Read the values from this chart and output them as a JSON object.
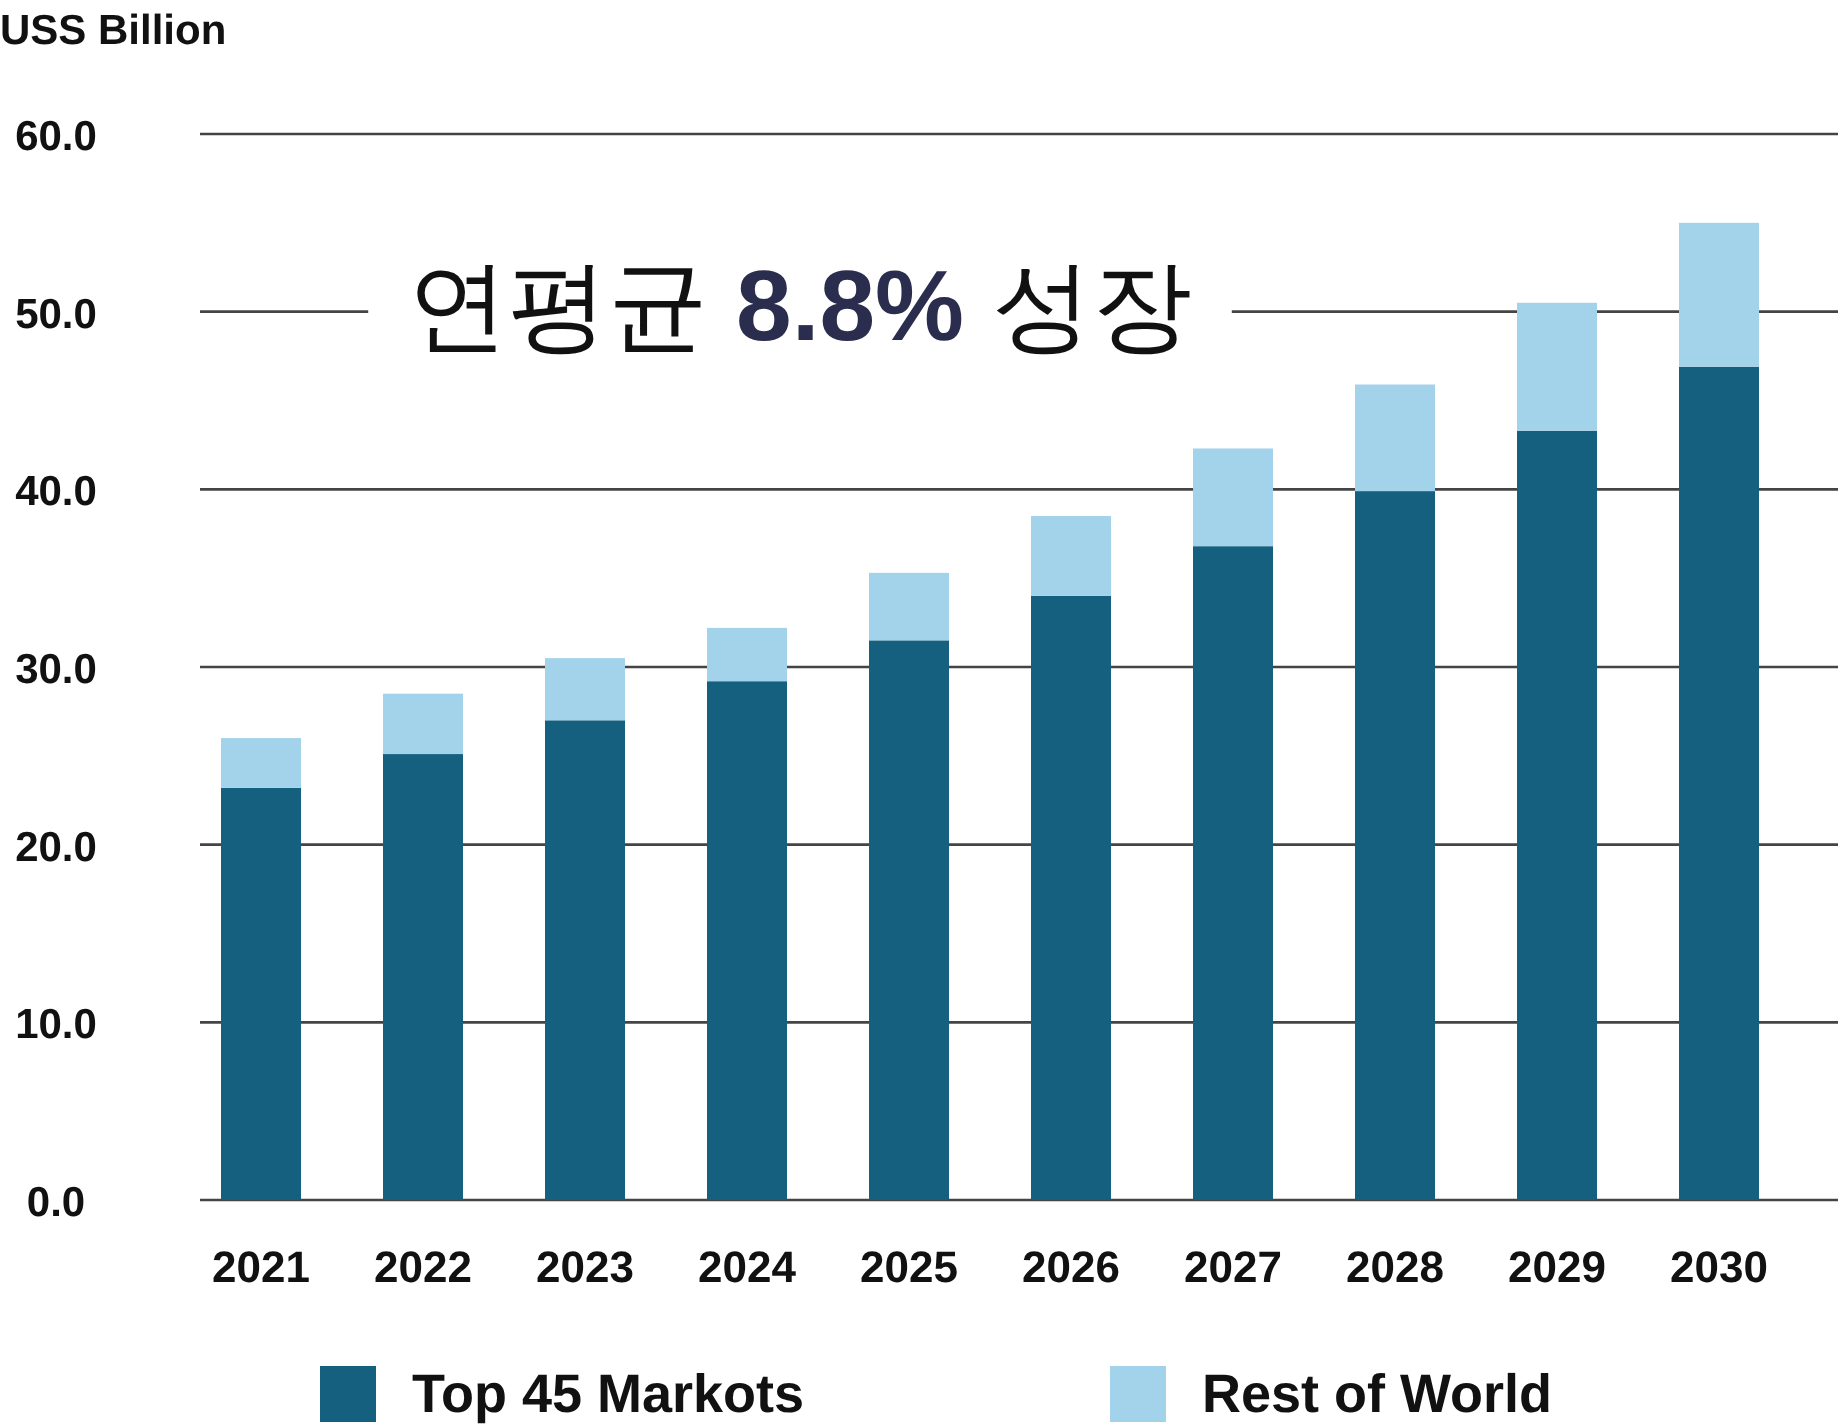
{
  "chart_data": {
    "type": "bar",
    "stacked": true,
    "ylabel": "USS Billion",
    "categories": [
      "2021",
      "2022",
      "2023",
      "2024",
      "2025",
      "2026",
      "2027",
      "2028",
      "2029",
      "2030"
    ],
    "series": [
      {
        "name": "Top 45 Markots",
        "color": "#155f7f",
        "values": [
          23.2,
          25.1,
          27.0,
          29.2,
          31.5,
          34.0,
          36.8,
          39.9,
          43.3,
          46.9
        ]
      },
      {
        "name": "Rest of World",
        "color": "#a3d3eb",
        "values": [
          2.8,
          3.4,
          3.5,
          3.0,
          3.8,
          4.5,
          5.5,
          6.0,
          7.2,
          8.1
        ]
      }
    ],
    "ylim": [
      0,
      60
    ],
    "yticks": [
      {
        "value": 0,
        "label": "0.0"
      },
      {
        "value": 10,
        "label": "10.0"
      },
      {
        "value": 20,
        "label": "20.0"
      },
      {
        "value": 30,
        "label": "30.0"
      },
      {
        "value": 40,
        "label": "40.0"
      },
      {
        "value": 50,
        "label": "50.0"
      },
      {
        "value": 60,
        "label": "60.0"
      }
    ],
    "grid": "y",
    "legend": "bottom",
    "annotations": [
      "연평균 **8.8%** 성장"
    ]
  }
}
